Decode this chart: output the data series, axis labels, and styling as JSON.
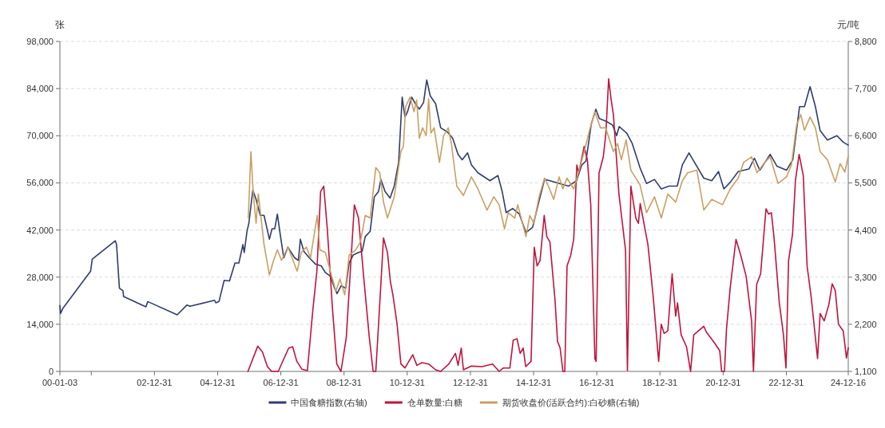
{
  "chart_data": {
    "type": "line",
    "ylabel": "张",
    "y2label": "元/吨",
    "grid": "y",
    "legend": "bottom",
    "xlim": [
      "2000-01-03",
      "2024-12-16"
    ],
    "xticks": [
      {
        "value": "2000-01-03",
        "label": "00-01-03"
      },
      {
        "value": "2000-12-31",
        "label": null
      },
      {
        "value": "2002-12-31",
        "label": "02-12-31"
      },
      {
        "value": "2004-12-31",
        "label": "04-12-31"
      },
      {
        "value": "2006-12-31",
        "label": "06-12-31"
      },
      {
        "value": "2008-12-31",
        "label": "08-12-31"
      },
      {
        "value": "2010-12-31",
        "label": "10-12-31"
      },
      {
        "value": "2012-12-31",
        "label": "12-12-31"
      },
      {
        "value": "2014-12-31",
        "label": "14-12-31"
      },
      {
        "value": "2016-12-31",
        "label": "16-12-31"
      },
      {
        "value": "2018-12-31",
        "label": "18-12-31"
      },
      {
        "value": "2020-12-31",
        "label": "20-12-31"
      },
      {
        "value": "2022-12-31",
        "label": "22-12-31"
      },
      {
        "value": "2024-12-16",
        "label": "24-12-16"
      }
    ],
    "ylim": [
      0,
      98000
    ],
    "yticks": [
      0,
      {
        "value": 14000,
        "label": "14,000"
      },
      {
        "value": 28000,
        "label": "28,000"
      },
      {
        "value": 42000,
        "label": "42,000"
      },
      {
        "value": 56000,
        "label": "56,000"
      },
      {
        "value": 70000,
        "label": "70,000"
      },
      {
        "value": 84000,
        "label": "84,000"
      },
      {
        "value": 98000,
        "label": "98,000"
      }
    ],
    "y2lim": [
      1100,
      8800
    ],
    "y2ticks": [
      {
        "value": 1100,
        "label": "1,100"
      },
      {
        "value": 2200,
        "label": "2,200"
      },
      {
        "value": 3300,
        "label": "3,300"
      },
      {
        "value": 4400,
        "label": "4,400"
      },
      {
        "value": 5500,
        "label": "5,500"
      },
      {
        "value": 6600,
        "label": "6,600"
      },
      {
        "value": 7700,
        "label": "7,700"
      },
      {
        "value": 8800,
        "label": "8,800"
      }
    ],
    "series": [
      {
        "name": "中国食糖指数(右轴)",
        "color": "#2f3d6e",
        "axis": "y2",
        "x": [
          "2000-01-03",
          "2000-01-10",
          "2000-02-07",
          "2000-12-23",
          "2001-01-11",
          "2001-10-04",
          "2001-10-19",
          "2001-11-21",
          "2002-01-01",
          "2002-01-08",
          "2002-09-23",
          "2002-10-15",
          "2003-09-20",
          "2004-01-11",
          "2004-02-14",
          "2004-11-25",
          "2004-12-09",
          "2005-01-15",
          "2005-03-16",
          "2005-05-17",
          "2005-07-19",
          "2005-09-02",
          "2005-10-19",
          "2005-11-03",
          "2005-12-05",
          "2005-12-27",
          "2006-02-10",
          "2006-03-20",
          "2006-05-07",
          "2006-06-20",
          "2006-08-21",
          "2006-09-20",
          "2006-10-22",
          "2006-11-21",
          "2006-12-23",
          "2007-02-03",
          "2007-03-23",
          "2007-06-09",
          "2007-07-22",
          "2007-08-14",
          "2007-09-23",
          "2007-11-25",
          "2008-02-07",
          "2008-04-11",
          "2008-05-28",
          "2008-07-26",
          "2008-09-13",
          "2008-10-11",
          "2008-11-28",
          "2009-01-19",
          "2009-02-28",
          "2009-04-15",
          "2009-06-16",
          "2009-07-29",
          "2009-09-02",
          "2009-10-29",
          "2009-12-16",
          "2010-02-03",
          "2010-03-02",
          "2010-04-19",
          "2010-06-16",
          "2010-08-03",
          "2010-09-23",
          "2010-11-03",
          "2010-12-05",
          "2011-01-04",
          "2011-02-21",
          "2011-04-04",
          "2011-05-21",
          "2011-07-08",
          "2011-08-14",
          "2011-09-23",
          "2011-11-25",
          "2012-01-22",
          "2012-04-08",
          "2012-06-09",
          "2012-08-10",
          "2012-09-27",
          "2012-11-28",
          "2013-01-11",
          "2013-03-27",
          "2013-08-14",
          "2013-11-14",
          "2014-01-02",
          "2014-02-17",
          "2014-05-03",
          "2014-07-19",
          "2014-10-04",
          "2014-12-20",
          "2015-03-09",
          "2015-05-07",
          "2015-07-08",
          "2015-10-26",
          "2016-02-10",
          "2016-05-10",
          "2016-07-11",
          "2016-08-28",
          "2016-10-29",
          "2016-12-20",
          "2017-01-29",
          "2017-04-15",
          "2017-07-01",
          "2017-08-17",
          "2017-09-16",
          "2017-12-13",
          "2018-02-14",
          "2018-05-14",
          "2018-07-29",
          "2018-10-29",
          "2019-01-15",
          "2019-04-15",
          "2019-07-19",
          "2019-09-16",
          "2019-12-02",
          "2020-02-03",
          "2020-05-21",
          "2020-08-21",
          "2020-11-07",
          "2021-01-08",
          "2021-03-23",
          "2021-06-23",
          "2021-10-26",
          "2021-12-27",
          "2022-02-28",
          "2022-06-27",
          "2022-09-13",
          "2023-01-02",
          "2023-03-16",
          "2023-06-02",
          "2023-07-29",
          "2023-10-01",
          "2023-12-02",
          "2024-01-26",
          "2024-04-19",
          "2024-08-07",
          "2024-10-19",
          "2024-12-16"
        ],
        "values": [
          2640,
          2450,
          2575,
          3440,
          3720,
          4150,
          4060,
          3040,
          2980,
          2850,
          2605,
          2730,
          2420,
          2650,
          2620,
          2760,
          2700,
          2730,
          3225,
          3210,
          3630,
          3630,
          4060,
          3875,
          4370,
          4560,
          5330,
          5115,
          4740,
          4740,
          4185,
          4430,
          4430,
          4770,
          4310,
          3750,
          4000,
          3750,
          3690,
          4185,
          3905,
          3750,
          3600,
          3565,
          3410,
          3320,
          3040,
          2915,
          3100,
          3040,
          3630,
          3815,
          3875,
          3905,
          4245,
          4370,
          5175,
          5300,
          5580,
          5300,
          5145,
          5425,
          5980,
          7500,
          7035,
          7160,
          7500,
          7345,
          7220,
          7375,
          7900,
          7530,
          7345,
          6785,
          6690,
          6540,
          6165,
          6040,
          6200,
          5920,
          5735,
          5550,
          5670,
          5300,
          4805,
          4900,
          4775,
          4340,
          4465,
          5115,
          5580,
          5550,
          5485,
          5425,
          5550,
          5920,
          6010,
          6880,
          7220,
          7000,
          6940,
          6850,
          6600,
          6815,
          6660,
          6415,
          5855,
          5485,
          5580,
          5360,
          5425,
          5425,
          5920,
          6200,
          5980,
          5610,
          5550,
          5765,
          5360,
          5515,
          5765,
          5825,
          6075,
          5795,
          6165,
          5890,
          5795,
          6040,
          7280,
          7280,
          7745,
          7280,
          6720,
          6500,
          6600,
          6450,
          6380
        ]
      },
      {
        "name": "仓单数量:白糖",
        "color": "#c0143c",
        "x": [
          "2005-12-16",
          "2006-04-08",
          "2006-06-02",
          "2006-07-29",
          "2006-09-16",
          "2006-12-02",
          "2007-01-15",
          "2007-04-01",
          "2007-05-17",
          "2007-07-04",
          "2007-09-02",
          "2007-11-03",
          "2008-01-04",
          "2008-02-21",
          "2008-04-04",
          "2008-05-10",
          "2008-06-20",
          "2008-08-21",
          "2008-10-08",
          "2008-11-25",
          "2009-01-26",
          "2009-04-29",
          "2009-06-16",
          "2009-08-17",
          "2009-10-19",
          "2009-12-02",
          "2010-01-02",
          "2010-02-03",
          "2010-04-01",
          "2010-05-17",
          "2010-06-20",
          "2010-07-19",
          "2010-09-05",
          "2010-10-19",
          "2010-12-05",
          "2011-01-19",
          "2011-03-05",
          "2011-04-22",
          "2011-06-20",
          "2011-09-05",
          "2011-11-25",
          "2012-01-22",
          "2012-04-26",
          "2012-07-11",
          "2012-08-10",
          "2012-09-16",
          "2012-10-11",
          "2013-01-11",
          "2013-05-14",
          "2013-09-13",
          "2013-11-28",
          "2014-01-15",
          "2014-04-01",
          "2014-05-10",
          "2014-06-23",
          "2014-07-29",
          "2014-09-02",
          "2014-10-01",
          "2014-12-02",
          "2015-01-08",
          "2015-02-10",
          "2015-03-16",
          "2015-05-03",
          "2015-06-02",
          "2015-07-08",
          "2015-09-05",
          "2015-10-04",
          "2015-11-03",
          "2015-12-05",
          "2015-12-27",
          "2016-01-22",
          "2016-03-05",
          "2016-04-08",
          "2016-05-14",
          "2016-06-05",
          "2016-08-07",
          "2016-09-13",
          "2016-10-22",
          "2016-12-09",
          "2016-12-23",
          "2017-01-26",
          "2017-03-16",
          "2017-04-15",
          "2017-05-17",
          "2017-06-13",
          "2017-07-11",
          "2017-09-13",
          "2017-11-28",
          "2017-12-20",
          "2018-01-29",
          "2018-03-27",
          "2018-04-26",
          "2018-05-17",
          "2018-08-14",
          "2018-10-15",
          "2018-12-16",
          "2019-01-15",
          "2019-02-17",
          "2019-04-01",
          "2019-05-21",
          "2019-07-01",
          "2019-07-22",
          "2019-09-02",
          "2019-11-03",
          "2019-12-20",
          "2020-01-26",
          "2020-05-21",
          "2020-06-20",
          "2020-09-20",
          "2020-11-21",
          "2020-12-13",
          "2021-01-15",
          "2021-02-07",
          "2021-03-23",
          "2021-05-28",
          "2021-07-22",
          "2021-09-23",
          "2021-11-25",
          "2021-12-16",
          "2022-01-22",
          "2022-03-09",
          "2022-05-10",
          "2022-06-09",
          "2022-07-11",
          "2022-08-10",
          "2022-10-11",
          "2022-11-28",
          "2022-12-27",
          "2023-01-26",
          "2023-03-13",
          "2023-04-15",
          "2023-05-28",
          "2023-07-15",
          "2023-08-28",
          "2023-10-15",
          "2023-12-02",
          "2023-12-27",
          "2024-01-26",
          "2024-03-13",
          "2024-05-07",
          "2024-06-13",
          "2024-07-19",
          "2024-08-25",
          "2024-10-19",
          "2024-11-25",
          "2024-12-16"
        ],
        "values": [
          0,
          7490,
          5750,
          1420,
          0,
          0,
          2600,
          6930,
          7330,
          2990,
          630,
          240,
          17970,
          29790,
          53430,
          55000,
          42390,
          17970,
          2210,
          0,
          10090,
          49490,
          45550,
          27420,
          10090,
          0,
          0,
          14030,
          39640,
          35300,
          26630,
          22690,
          14030,
          2210,
          1020,
          2990,
          4960,
          1810,
          2600,
          2210,
          470,
          0,
          2210,
          5360,
          1810,
          6930,
          470,
          1580,
          1420,
          2210,
          0,
          1020,
          1020,
          9300,
          9690,
          5360,
          6930,
          1420,
          2990,
          36880,
          31360,
          32940,
          46330,
          40030,
          38450,
          21120,
          8900,
          6930,
          0,
          0,
          31360,
          34510,
          39240,
          61310,
          58940,
          66820,
          62880,
          49490,
          3780,
          2990,
          58940,
          63670,
          70760,
          86920,
          81010,
          76280,
          52640,
          36090,
          240,
          55000,
          45550,
          43970,
          49880,
          37670,
          21910,
          2990,
          14030,
          11270,
          12060,
          29000,
          16390,
          20330,
          10870,
          7330,
          0,
          10870,
          13400,
          11660,
          8510,
          6150,
          0,
          0,
          12450,
          25060,
          39240,
          34510,
          28210,
          14810,
          0,
          25850,
          29000,
          48300,
          46730,
          47120,
          40030,
          20330,
          10870,
          1020,
          32940,
          40820,
          56580,
          64460,
          58150,
          31360,
          21910,
          10090,
          3780,
          17180,
          15000,
          20000,
          26000,
          24000,
          14000,
          12000,
          4000,
          7000
        ]
      },
      {
        "name": "期货收盘价(活跃合约):白砂糖(右轴)",
        "color": "#c8a063",
        "axis": "y2",
        "x": [
          "2005-12-20",
          "2006-01-19",
          "2006-02-14",
          "2006-03-20",
          "2006-04-15",
          "2006-06-20",
          "2006-08-21",
          "2006-10-08",
          "2006-11-21",
          "2007-01-08",
          "2007-03-23",
          "2007-07-08",
          "2007-08-25",
          "2007-10-22",
          "2007-12-09",
          "2008-02-25",
          "2008-03-27",
          "2008-05-28",
          "2008-07-26",
          "2008-09-27",
          "2008-11-14",
          "2009-01-08",
          "2009-02-28",
          "2009-05-14",
          "2009-07-08",
          "2009-09-02",
          "2009-10-29",
          "2010-01-02",
          "2010-02-17",
          "2010-04-01",
          "2010-05-17",
          "2010-08-03",
          "2010-10-19",
          "2010-11-17",
          "2010-12-13",
          "2011-02-03",
          "2011-03-20",
          "2011-04-19",
          "2011-05-21",
          "2011-06-27",
          "2011-08-07",
          "2011-09-05",
          "2011-10-01",
          "2011-11-07",
          "2012-01-08",
          "2012-02-25",
          "2012-04-19",
          "2012-05-25",
          "2012-07-26",
          "2012-10-11",
          "2013-01-11",
          "2013-03-27",
          "2013-07-11",
          "2013-09-27",
          "2013-11-28",
          "2014-01-29",
          "2014-03-13",
          "2014-05-28",
          "2014-07-01",
          "2014-10-04",
          "2014-11-17",
          "2015-01-04",
          "2015-03-05",
          "2015-05-07",
          "2015-06-20",
          "2015-08-21",
          "2015-10-22",
          "2015-12-05",
          "2016-01-22",
          "2016-04-08",
          "2016-06-09",
          "2016-08-07",
          "2016-10-08",
          "2016-12-09",
          "2017-02-10",
          "2017-04-11",
          "2017-07-11",
          "2017-08-28",
          "2017-10-11",
          "2017-12-05",
          "2018-01-29",
          "2018-05-14",
          "2018-07-29",
          "2018-10-29",
          "2019-01-15",
          "2019-04-01",
          "2019-07-01",
          "2019-09-16",
          "2019-11-17",
          "2020-03-02",
          "2020-05-21",
          "2020-08-21",
          "2020-12-23",
          "2021-03-23",
          "2021-06-23",
          "2021-08-25",
          "2021-11-25",
          "2022-01-26",
          "2022-04-26",
          "2022-06-27",
          "2022-09-27",
          "2023-01-02",
          "2023-02-28",
          "2023-04-29",
          "2023-06-16",
          "2023-07-29",
          "2023-10-01",
          "2023-12-02",
          "2024-01-26",
          "2024-04-19",
          "2024-07-19",
          "2024-09-13",
          "2024-11-07",
          "2024-12-16"
        ],
        "values": [
          4680,
          6230,
          5300,
          4555,
          5240,
          4060,
          3350,
          3690,
          3935,
          3690,
          4000,
          3440,
          3875,
          4000,
          3750,
          4740,
          3935,
          3875,
          3440,
          2975,
          3255,
          2885,
          3815,
          3935,
          4120,
          4740,
          4680,
          5855,
          5735,
          5050,
          4680,
          5175,
          6230,
          6350,
          7280,
          7500,
          7160,
          7435,
          6540,
          6785,
          6600,
          7465,
          6660,
          6785,
          5980,
          6600,
          6785,
          6415,
          5425,
          5205,
          5640,
          5360,
          4865,
          5175,
          4990,
          4430,
          4805,
          4680,
          4990,
          4245,
          4740,
          4555,
          5175,
          5610,
          5425,
          5115,
          5640,
          5360,
          5610,
          5360,
          5795,
          6230,
          6725,
          7160,
          6785,
          6785,
          6230,
          6415,
          6040,
          6505,
          5795,
          5455,
          4805,
          5175,
          4680,
          5240,
          5050,
          5550,
          5735,
          5795,
          4865,
          5115,
          4990,
          5360,
          5610,
          5980,
          6105,
          5735,
          5980,
          6105,
          5485,
          5640,
          5920,
          6850,
          7095,
          6725,
          7035,
          6785,
          6230,
          6040,
          5520,
          5950,
          5750,
          6130
        ]
      }
    ]
  }
}
